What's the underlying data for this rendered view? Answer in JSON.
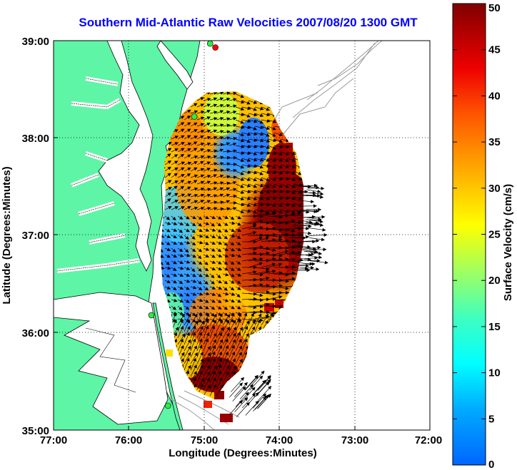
{
  "title": "Southern Mid-Atlantic Raw Velocities 2007/08/20 1300 GMT",
  "x_axis": {
    "label": "Longitude (Degrees:Minutes)",
    "ticks": [
      "77:00",
      "76:00",
      "75:00",
      "74:00",
      "73:00",
      "72:00"
    ]
  },
  "y_axis": {
    "label": "Latitude (Degrees:Minutes)",
    "ticks": [
      "39:00",
      "38:00",
      "37:00",
      "36:00",
      "35:00"
    ]
  },
  "colorbar": {
    "label": "Surface Velocity (cm/s)",
    "ticks": [
      "0",
      "5",
      "10",
      "15",
      "20",
      "25",
      "30",
      "35",
      "40",
      "45",
      "50"
    ],
    "min": 0,
    "max": 50
  },
  "map": {
    "lon_range": [
      -77,
      -72
    ],
    "lat_range": [
      35,
      39
    ],
    "grid": true,
    "land_color": "#5ef5a6",
    "coastline_color": "#000000",
    "bathymetry_color": "#9a9a9a",
    "colormap": "jet",
    "vector_color": "#000000"
  },
  "radar_sites": [
    {
      "lon": -74.85,
      "lat": 38.93,
      "color": "#ff0000"
    },
    {
      "lon": -74.92,
      "lat": 38.97,
      "color": "#2aee44"
    },
    {
      "lon": -75.13,
      "lat": 38.22,
      "color": "#2aee44"
    },
    {
      "lon": -75.7,
      "lat": 36.18,
      "color": "#2aee44"
    },
    {
      "lon": -75.48,
      "lat": 35.25,
      "color": "#2aee44"
    }
  ]
}
